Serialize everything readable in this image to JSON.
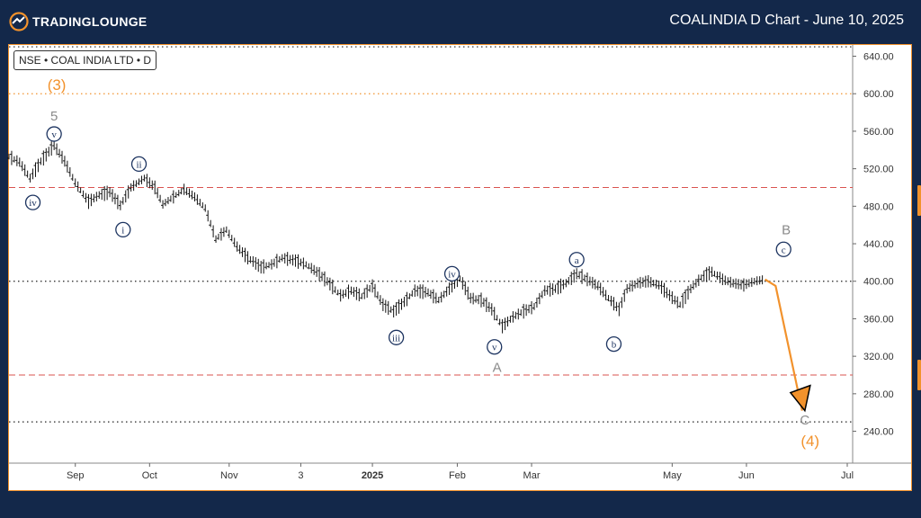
{
  "header": {
    "brand": "TradingLounge",
    "brand_display": "TRADINGLOUNGE",
    "title": "COALINDIA D Chart - June 10, 2025"
  },
  "symbol_label": "NSE • COAL INDIA LTD • D",
  "colors": {
    "background": "#13284a",
    "accent": "#f2922c",
    "wave_blue": "#1d3460",
    "wave_gray": "#8a8a8a",
    "level_red": "#d9534f",
    "projection": "#f2922c"
  },
  "chart_data": {
    "type": "line",
    "title": "COALINDIA D Chart - June 10, 2025",
    "xlabel": "",
    "ylabel": "",
    "ylim": [
      206,
      652
    ],
    "xlim": [
      0,
      316
    ],
    "yticks": [
      "640.00",
      "600.00",
      "560.00",
      "520.00",
      "480.00",
      "440.00",
      "400.00",
      "360.00",
      "320.00",
      "280.00",
      "240.00"
    ],
    "ytick_values": [
      640,
      600,
      560,
      520,
      480,
      440,
      400,
      360,
      320,
      280,
      240
    ],
    "xticks": [
      {
        "label": "Sep",
        "x": 25
      },
      {
        "label": "Oct",
        "x": 53
      },
      {
        "label": "Nov",
        "x": 83
      },
      {
        "label": "3",
        "x": 110
      },
      {
        "label": "2025",
        "x": 137
      },
      {
        "label": "Feb",
        "x": 169
      },
      {
        "label": "Mar",
        "x": 197
      },
      {
        "label": "May",
        "x": 250
      },
      {
        "label": "Jun",
        "x": 278
      },
      {
        "label": "Jul",
        "x": 316
      }
    ],
    "levels": [
      {
        "value": 650,
        "style": "dotted-black"
      },
      {
        "value": 600,
        "style": "dotted-orange"
      },
      {
        "value": 500,
        "style": "dashed-red"
      },
      {
        "value": 400,
        "style": "dotted-black"
      },
      {
        "value": 300,
        "style": "dashed-red"
      },
      {
        "value": 250,
        "style": "dotted-black"
      }
    ],
    "price_path": [
      [
        0,
        533
      ],
      [
        4,
        527
      ],
      [
        8,
        510
      ],
      [
        12,
        528
      ],
      [
        17,
        545
      ],
      [
        21,
        528
      ],
      [
        25,
        505
      ],
      [
        30,
        485
      ],
      [
        34,
        492
      ],
      [
        38,
        495
      ],
      [
        42,
        481
      ],
      [
        46,
        500
      ],
      [
        51,
        510
      ],
      [
        55,
        500
      ],
      [
        58,
        482
      ],
      [
        62,
        490
      ],
      [
        66,
        498
      ],
      [
        70,
        490
      ],
      [
        74,
        478
      ],
      [
        78,
        445
      ],
      [
        82,
        455
      ],
      [
        86,
        437
      ],
      [
        90,
        425
      ],
      [
        95,
        415
      ],
      [
        99,
        418
      ],
      [
        103,
        425
      ],
      [
        108,
        422
      ],
      [
        112,
        418
      ],
      [
        116,
        410
      ],
      [
        120,
        400
      ],
      [
        125,
        385
      ],
      [
        129,
        390
      ],
      [
        133,
        384
      ],
      [
        137,
        395
      ],
      [
        141,
        375
      ],
      [
        145,
        368
      ],
      [
        149,
        378
      ],
      [
        153,
        390
      ],
      [
        158,
        388
      ],
      [
        162,
        380
      ],
      [
        166,
        392
      ],
      [
        170,
        403
      ],
      [
        174,
        382
      ],
      [
        178,
        380
      ],
      [
        182,
        370
      ],
      [
        186,
        352
      ],
      [
        190,
        362
      ],
      [
        194,
        368
      ],
      [
        198,
        373
      ],
      [
        202,
        390
      ],
      [
        206,
        392
      ],
      [
        210,
        398
      ],
      [
        214,
        408
      ],
      [
        218,
        402
      ],
      [
        222,
        395
      ],
      [
        226,
        382
      ],
      [
        230,
        370
      ],
      [
        233,
        392
      ],
      [
        237,
        398
      ],
      [
        241,
        400
      ],
      [
        245,
        396
      ],
      [
        249,
        385
      ],
      [
        253,
        375
      ],
      [
        257,
        392
      ],
      [
        261,
        404
      ],
      [
        265,
        410
      ],
      [
        269,
        402
      ],
      [
        273,
        398
      ],
      [
        277,
        396
      ],
      [
        281,
        400
      ],
      [
        285,
        402
      ]
    ],
    "projection": [
      [
        285,
        402
      ],
      [
        289,
        395
      ],
      [
        299,
        262
      ]
    ],
    "wave_labels": [
      {
        "text": "(3)",
        "x": 18,
        "y": 610,
        "style": "orange-paren"
      },
      {
        "text": "5",
        "x": 17,
        "y": 576,
        "style": "gray"
      },
      {
        "text": "v",
        "x": 17,
        "y": 557,
        "style": "blue-circle"
      },
      {
        "text": "iv",
        "x": 9,
        "y": 484,
        "style": "blue-circle"
      },
      {
        "text": "ii",
        "x": 49,
        "y": 525,
        "style": "blue-circle"
      },
      {
        "text": "i",
        "x": 43,
        "y": 455,
        "style": "blue-circle"
      },
      {
        "text": "iii",
        "x": 146,
        "y": 340,
        "style": "blue-circle"
      },
      {
        "text": "iv",
        "x": 167,
        "y": 408,
        "style": "blue-circle"
      },
      {
        "text": "v",
        "x": 183,
        "y": 330,
        "style": "blue-circle"
      },
      {
        "text": "A",
        "x": 184,
        "y": 308,
        "style": "gray"
      },
      {
        "text": "a",
        "x": 214,
        "y": 423,
        "style": "blue-circle"
      },
      {
        "text": "b",
        "x": 228,
        "y": 333,
        "style": "blue-circle"
      },
      {
        "text": "B",
        "x": 293,
        "y": 455,
        "style": "gray"
      },
      {
        "text": "c",
        "x": 292,
        "y": 434,
        "style": "blue-circle"
      },
      {
        "text": "C",
        "x": 300,
        "y": 252,
        "style": "gray"
      },
      {
        "text": "(4)",
        "x": 302,
        "y": 230,
        "style": "orange-paren"
      }
    ]
  }
}
